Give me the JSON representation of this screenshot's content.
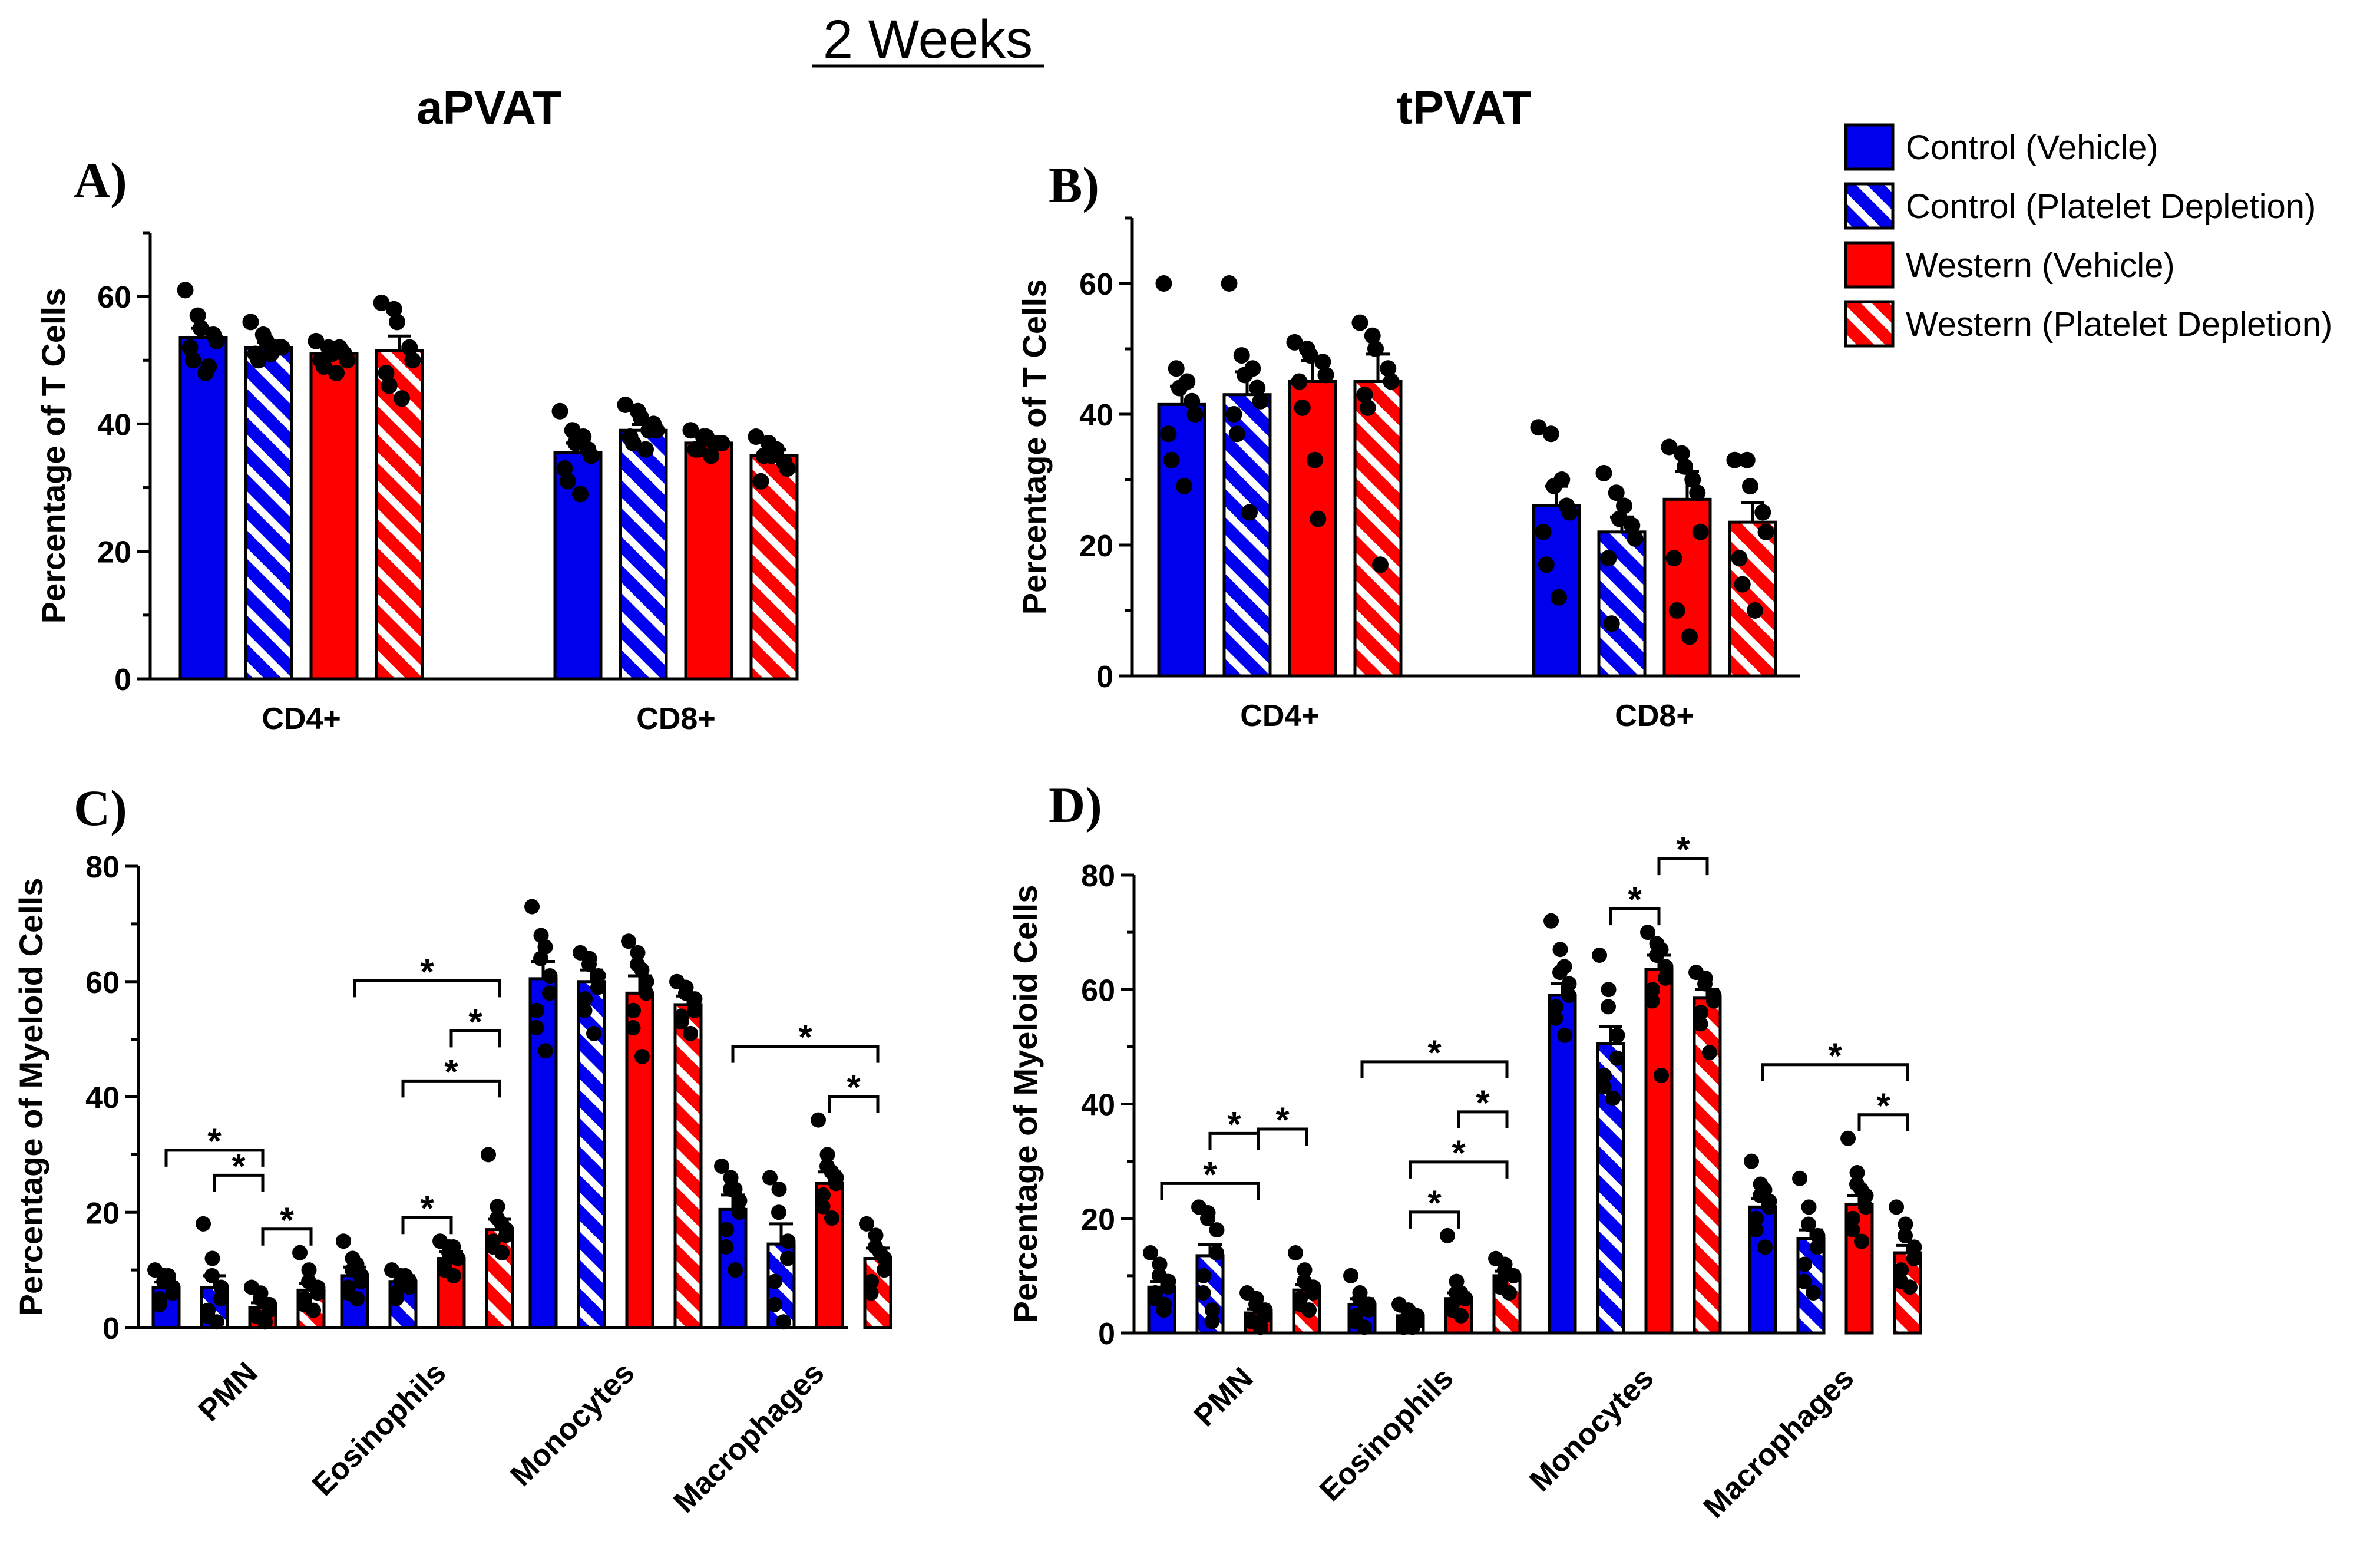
{
  "figure": {
    "title": "2 Weeks",
    "column_titles": [
      "aPVAT",
      "tPVAT"
    ],
    "panel_labels": [
      "A)",
      "B)",
      "C)",
      "D)"
    ]
  },
  "colors": {
    "control": "#0000ee",
    "western": "#ff0000",
    "stripe": "#ffffff",
    "axis": "#000000"
  },
  "legend": {
    "entries": [
      {
        "label": "Control (Vehicle)",
        "color": "#0000ee",
        "hatched": false
      },
      {
        "label": "Control (Platelet Depletion)",
        "color": "#0000ee",
        "hatched": true
      },
      {
        "label": "Western (Vehicle)",
        "color": "#ff0000",
        "hatched": false
      },
      {
        "label": "Western (Platelet Depletion)",
        "color": "#ff0000",
        "hatched": true
      }
    ]
  },
  "chart_data": [
    {
      "id": "A",
      "type": "bar",
      "title": "aPVAT",
      "ylabel": "Percentage of T Cells",
      "ylim": [
        0,
        70
      ],
      "yticks": [
        0,
        20,
        40,
        60
      ],
      "categories": [
        "CD4+",
        "CD8+"
      ],
      "series": [
        {
          "name": "Control (Vehicle)",
          "values": [
            53.5,
            35.5
          ],
          "err": [
            1.5,
            1.5
          ],
          "points": [
            [
              61,
              57,
              55,
              54,
              53,
              52,
              50,
              48,
              49
            ],
            [
              42,
              39,
              37,
              36,
              35,
              33,
              31,
              29,
              38
            ]
          ]
        },
        {
          "name": "Control (Platelet Depletion)",
          "values": [
            52,
            39
          ],
          "err": [
            0.8,
            0.9
          ],
          "points": [
            [
              56,
              54,
              53,
              52,
              52,
              51,
              50,
              51,
              52
            ],
            [
              43,
              42,
              41,
              40,
              39,
              38,
              37,
              36,
              39
            ]
          ]
        },
        {
          "name": "Western (Vehicle)",
          "values": [
            51,
            37
          ],
          "err": [
            0.8,
            0.6
          ],
          "points": [
            [
              53,
              52,
              51,
              51,
              50,
              50,
              49,
              48,
              52
            ],
            [
              39,
              38,
              38,
              37,
              37,
              36,
              36,
              35,
              37
            ]
          ]
        },
        {
          "name": "Western (Platelet Depletion)",
          "values": [
            51.5,
            35
          ],
          "err": [
            2.3,
            1
          ],
          "points": [
            [
              59,
              58,
              56,
              52,
              50,
              48,
              46,
              44
            ],
            [
              38,
              37,
              35,
              34,
              33,
              31,
              35,
              36
            ]
          ]
        }
      ],
      "significance": []
    },
    {
      "id": "B",
      "type": "bar",
      "title": "tPVAT",
      "ylabel": "Percentage of T Cells",
      "ylim": [
        0,
        70
      ],
      "yticks": [
        0,
        20,
        40,
        60
      ],
      "categories": [
        "CD4+",
        "CD8+"
      ],
      "series": [
        {
          "name": "Control (Vehicle)",
          "values": [
            41.5,
            26
          ],
          "err": [
            2.8,
            3
          ],
          "points": [
            [
              60,
              47,
              44,
              42,
              40,
              37,
              33,
              29,
              45
            ],
            [
              38,
              37,
              29,
              26,
              25,
              22,
              17,
              12,
              30
            ]
          ]
        },
        {
          "name": "Control (Platelet Depletion)",
          "values": [
            43,
            22
          ],
          "err": [
            3.5,
            2.3
          ],
          "points": [
            [
              60,
              49,
              46,
              44,
              42,
              40,
              37,
              25,
              47
            ],
            [
              31,
              28,
              24,
              23,
              21,
              18,
              8,
              26
            ]
          ]
        },
        {
          "name": "Western (Vehicle)",
          "values": [
            45,
            27
          ],
          "err": [
            3.2,
            4.3
          ],
          "points": [
            [
              51,
              50,
              49,
              48,
              46,
              45,
              41,
              33,
              24
            ],
            [
              35,
              34,
              32,
              28,
              22,
              18,
              10,
              6,
              30
            ]
          ]
        },
        {
          "name": "Western (Platelet Depletion)",
          "values": [
            45,
            23.5
          ],
          "err": [
            4.2,
            3
          ],
          "points": [
            [
              54,
              52,
              50,
              47,
              45,
              43,
              41,
              17
            ],
            [
              33,
              33,
              29,
              25,
              22,
              18,
              14,
              10
            ]
          ]
        }
      ],
      "significance": []
    },
    {
      "id": "C",
      "type": "bar",
      "title": "",
      "ylabel": "Percentage of Myeloid Cells",
      "ylim": [
        0,
        80
      ],
      "yticks": [
        0,
        20,
        40,
        60,
        80
      ],
      "categories": [
        "PMN",
        "Eosinophils",
        "Monocytes",
        "Macrophages"
      ],
      "series": [
        {
          "name": "Control (Vehicle)",
          "values": [
            7,
            9,
            60.5,
            20.5
          ],
          "err": [
            0.9,
            1.5,
            3,
            2.5
          ],
          "points": [
            [
              10,
              9,
              8,
              7,
              6,
              5,
              4,
              8,
              9
            ],
            [
              15,
              12,
              10,
              9,
              8,
              7,
              6,
              5,
              11
            ],
            [
              73,
              68,
              64,
              61,
              58,
              55,
              52,
              48,
              66
            ],
            [
              28,
              26,
              24,
              22,
              20,
              17,
              14,
              10,
              24
            ]
          ]
        },
        {
          "name": "Control (Platelet Depletion)",
          "values": [
            7,
            8,
            60,
            14.5
          ],
          "err": [
            2,
            1,
            2,
            3.5
          ],
          "points": [
            [
              18,
              12,
              9,
              7,
              5,
              3,
              2,
              1
            ],
            [
              10,
              9,
              8,
              8,
              7,
              6,
              5,
              9
            ],
            [
              65,
              64,
              63,
              61,
              59,
              57,
              55,
              51
            ],
            [
              26,
              24,
              20,
              15,
              12,
              8,
              4,
              1
            ]
          ]
        },
        {
          "name": "Western (Vehicle)",
          "values": [
            3.5,
            12,
            58,
            25
          ],
          "err": [
            0.8,
            1.2,
            3,
            2
          ],
          "points": [
            [
              7,
              6,
              5,
              4,
              3,
              2,
              2,
              1,
              1
            ],
            [
              15,
              14,
              13,
              12,
              12,
              11,
              10,
              9,
              14
            ],
            [
              67,
              65,
              63,
              60,
              58,
              55,
              52,
              47,
              62
            ],
            [
              36,
              30,
              28,
              26,
              25,
              23,
              21,
              19,
              27
            ]
          ]
        },
        {
          "name": "Western (Platelet Depletion)",
          "values": [
            6.5,
            17,
            56,
            12
          ],
          "err": [
            1.2,
            1.8,
            1.5,
            1.8
          ],
          "points": [
            [
              13,
              10,
              8,
              7,
              6,
              5,
              4,
              3
            ],
            [
              30,
              21,
              19,
              17,
              16,
              15,
              14,
              13,
              18
            ],
            [
              60,
              59,
              58,
              57,
              55,
              54,
              53,
              51
            ],
            [
              18,
              16,
              14,
              12,
              10,
              8,
              6,
              13
            ]
          ]
        }
      ],
      "significance": [
        {
          "category": 0,
          "from": 0,
          "to": 2,
          "level": 1,
          "label": "*"
        },
        {
          "category": 0,
          "from": 1,
          "to": 2,
          "level": 0.5,
          "label": "*"
        },
        {
          "category": 0,
          "from": 2,
          "to": 3,
          "level": 0,
          "label": "*"
        },
        {
          "category": 1,
          "from": 0,
          "to": 3,
          "level": 3,
          "label": "*"
        },
        {
          "category": 1,
          "from": 2,
          "to": 3,
          "level": 2,
          "label": "*"
        },
        {
          "category": 1,
          "from": 1,
          "to": 3,
          "level": 1,
          "label": "*"
        },
        {
          "category": 1,
          "from": 1,
          "to": 2,
          "level": 0,
          "label": "*"
        },
        {
          "category": 3,
          "from": 0,
          "to": 3,
          "level": 1,
          "label": "*"
        },
        {
          "category": 3,
          "from": 2,
          "to": 3,
          "level": 0,
          "label": "*"
        }
      ]
    },
    {
      "id": "D",
      "type": "bar",
      "title": "",
      "ylabel": "Percentage of Myeloid Cells",
      "ylim": [
        0,
        80
      ],
      "yticks": [
        0,
        20,
        40,
        60,
        80
      ],
      "categories": [
        "PMN",
        "Eosinophils",
        "Monocytes",
        "Macrophages"
      ],
      "series": [
        {
          "name": "Control (Vehicle)",
          "values": [
            8,
            5,
            59,
            22
          ],
          "err": [
            1,
            1,
            2,
            1.5
          ],
          "points": [
            [
              14,
              12,
              10,
              9,
              8,
              7,
              6,
              5,
              4
            ],
            [
              10,
              7,
              6,
              5,
              4,
              3,
              2,
              1,
              5
            ],
            [
              72,
              67,
              63,
              61,
              59,
              57,
              55,
              52,
              64
            ],
            [
              30,
              26,
              24,
              23,
              22,
              20,
              18,
              15,
              25
            ]
          ]
        },
        {
          "name": "Control (Platelet Depletion)",
          "values": [
            13.5,
            3,
            50.5,
            16.5
          ],
          "err": [
            2,
            0.8,
            3,
            1.5
          ],
          "points": [
            [
              22,
              21,
              20,
              18,
              14,
              10,
              7,
              4,
              2
            ],
            [
              5,
              4,
              3,
              3,
              2,
              2,
              1,
              1
            ],
            [
              66,
              60,
              57,
              52,
              48,
              45,
              43,
              41
            ],
            [
              27,
              22,
              19,
              17,
              15,
              12,
              9,
              7
            ]
          ]
        },
        {
          "name": "Western (Vehicle)",
          "values": [
            3.5,
            6,
            63.5,
            22.5
          ],
          "err": [
            0.7,
            1,
            2.5,
            1.5
          ],
          "points": [
            [
              7,
              6,
              5,
              4,
              3,
              2,
              2,
              1,
              1
            ],
            [
              17,
              9,
              7,
              6,
              6,
              5,
              4,
              3,
              7
            ],
            [
              70,
              68,
              66,
              64,
              62,
              60,
              58,
              45,
              67
            ],
            [
              34,
              28,
              26,
              24,
              22,
              20,
              18,
              16,
              25
            ]
          ]
        },
        {
          "name": "Western (Platelet Depletion)",
          "values": [
            7.5,
            10,
            58.5,
            14
          ],
          "err": [
            1,
            0.8,
            1.5,
            1.3
          ],
          "points": [
            [
              14,
              11,
              9,
              8,
              7,
              6,
              5,
              4
            ],
            [
              13,
              12,
              11,
              10,
              10,
              9,
              8,
              7
            ],
            [
              63,
              62,
              61,
              59,
              58,
              56,
              54,
              49
            ],
            [
              22,
              19,
              17,
              15,
              13,
              11,
              9,
              8
            ]
          ]
        }
      ],
      "significance": [
        {
          "category": 0,
          "from": 0,
          "to": 2,
          "level": 0,
          "label": "*"
        },
        {
          "category": 0,
          "from": 1,
          "to": 2,
          "level": 1,
          "label": "*"
        },
        {
          "category": 0,
          "from": 2,
          "to": 3,
          "level": 2,
          "label": "*"
        },
        {
          "category": 1,
          "from": 0,
          "to": 3,
          "level": 3,
          "label": "*"
        },
        {
          "category": 1,
          "from": 2,
          "to": 3,
          "level": 2,
          "label": "*"
        },
        {
          "category": 1,
          "from": 1,
          "to": 3,
          "level": 1,
          "label": "*"
        },
        {
          "category": 1,
          "from": 1,
          "to": 2,
          "level": 0,
          "label": "*"
        },
        {
          "category": 2,
          "from": 1,
          "to": 2,
          "level": 0,
          "label": "*"
        },
        {
          "category": 2,
          "from": 2,
          "to": 3,
          "level": 1,
          "label": "*"
        },
        {
          "category": 3,
          "from": 0,
          "to": 3,
          "level": 1,
          "label": "*"
        },
        {
          "category": 3,
          "from": 2,
          "to": 3,
          "level": 0,
          "label": "*"
        }
      ]
    }
  ]
}
